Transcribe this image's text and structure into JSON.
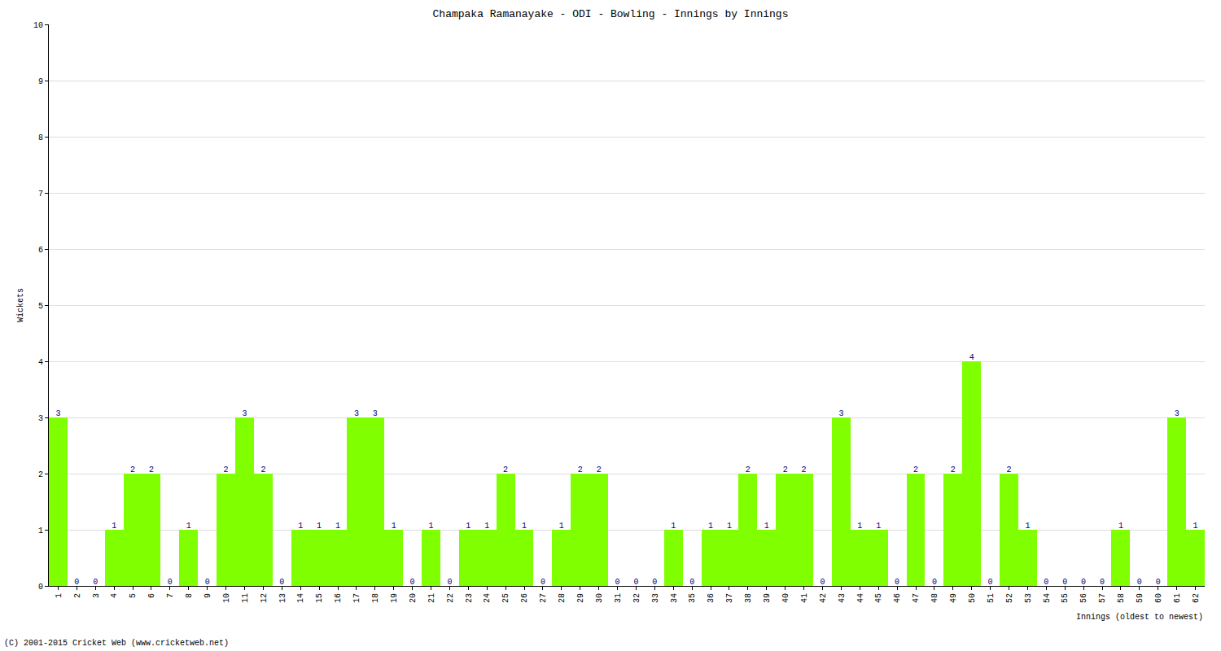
{
  "chart_data": {
    "type": "bar",
    "title": "Champaka Ramanayake - ODI - Bowling - Innings by Innings",
    "x_label": "Innings (oldest to newest)",
    "y_label": "Wickets",
    "annotations": [
      "(C) 2001-2015 Cricket Web (www.cricketweb.net)"
    ],
    "categories": [
      "1",
      "2",
      "3",
      "4",
      "5",
      "6",
      "7",
      "8",
      "9",
      "10",
      "11",
      "12",
      "13",
      "14",
      "15",
      "16",
      "17",
      "18",
      "19",
      "20",
      "21",
      "22",
      "23",
      "24",
      "25",
      "26",
      "27",
      "28",
      "29",
      "30",
      "31",
      "32",
      "33",
      "34",
      "35",
      "36",
      "37",
      "38",
      "39",
      "40",
      "41",
      "42",
      "43",
      "44",
      "45",
      "46",
      "47",
      "48",
      "49",
      "50",
      "51",
      "52",
      "53",
      "54",
      "55",
      "56",
      "57",
      "58",
      "59",
      "60",
      "61",
      "62"
    ],
    "values": [
      3,
      0,
      0,
      1,
      2,
      2,
      0,
      1,
      0,
      2,
      3,
      2,
      0,
      1,
      1,
      1,
      3,
      3,
      1,
      0,
      1,
      0,
      1,
      1,
      2,
      1,
      0,
      1,
      2,
      2,
      0,
      0,
      0,
      1,
      0,
      1,
      1,
      2,
      1,
      2,
      2,
      0,
      3,
      1,
      1,
      0,
      2,
      0,
      2,
      4,
      0,
      2,
      1,
      0,
      0,
      0,
      0,
      1,
      0,
      0,
      3,
      1
    ],
    "color": "#7fff00",
    "ylim": [
      0,
      10
    ],
    "yticks": [
      0,
      1,
      2,
      3,
      4,
      5,
      6,
      7,
      8,
      9,
      10
    ],
    "grid": true,
    "data_labels": true
  }
}
